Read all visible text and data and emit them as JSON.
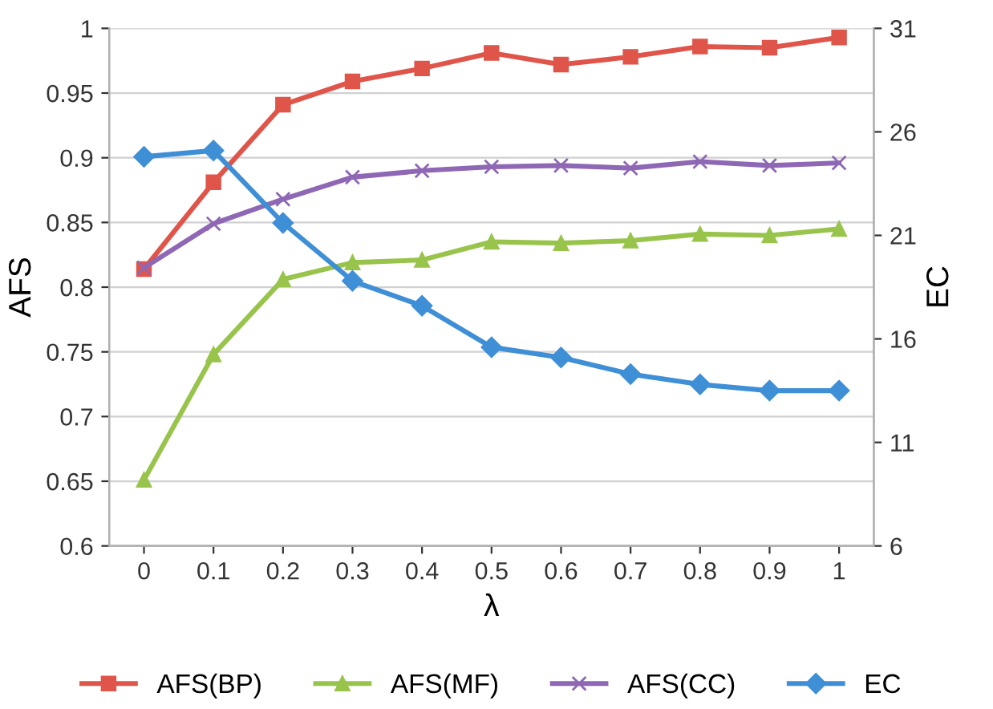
{
  "chart_data": {
    "type": "line",
    "xlabel": "λ",
    "ylabel": "AFS",
    "y2label": "EC",
    "categories": [
      "0",
      "0.1",
      "0.2",
      "0.3",
      "0.4",
      "0.5",
      "0.6",
      "0.7",
      "0.8",
      "0.9",
      "1"
    ],
    "series": [
      {
        "name": "AFS(BP)",
        "color": "#e0554a",
        "marker": "square",
        "values": [
          0.814,
          0.881,
          0.941,
          0.959,
          0.969,
          0.981,
          0.972,
          0.978,
          0.986,
          0.985,
          0.993
        ]
      },
      {
        "name": "AFS(MF)",
        "color": "#98c44c",
        "marker": "triangle",
        "values": [
          0.651,
          0.748,
          0.806,
          0.819,
          0.821,
          0.835,
          0.834,
          0.836,
          0.841,
          0.84,
          0.845
        ]
      },
      {
        "name": "AFS(CC)",
        "color": "#8e67b5",
        "marker": "cross",
        "values": [
          0.815,
          0.849,
          0.868,
          0.885,
          0.89,
          0.893,
          0.894,
          0.892,
          0.897,
          0.894,
          0.896
        ]
      },
      {
        "name": "EC",
        "color": "#3f8fd6",
        "marker": "diamond",
        "axis": "y2",
        "values": [
          24.8,
          25.1,
          21.6,
          18.8,
          17.6,
          15.6,
          15.1,
          14.3,
          13.8,
          13.5,
          13.5
        ]
      }
    ],
    "ylim": [
      0.6,
      1
    ],
    "yticks": [
      0.6,
      0.65,
      0.7,
      0.75,
      0.8,
      0.85,
      0.9,
      0.95,
      1
    ],
    "y2lim": [
      6,
      31
    ],
    "y2ticks": [
      6,
      11,
      16,
      21,
      26,
      31
    ],
    "grid": "y",
    "legend": "bottom"
  }
}
